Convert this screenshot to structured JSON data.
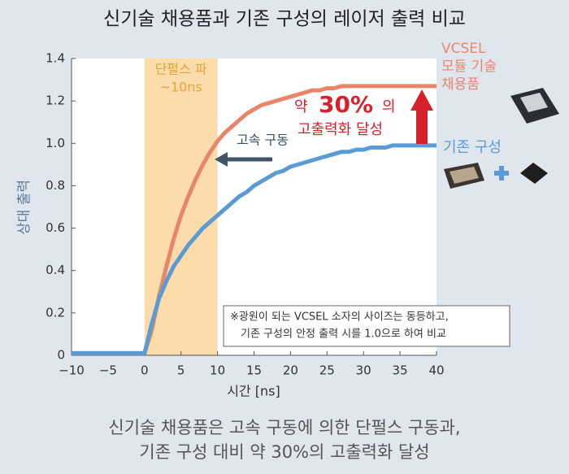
{
  "chart_data": {
    "type": "line",
    "title": "신기술 채용품과 기존 구성의 레이저 출력 비교",
    "x_label": "시간 [ns]",
    "y_label": "상대 출력",
    "x": [
      -10,
      -9,
      -8,
      -7,
      -6,
      -5,
      -4,
      -3,
      -2,
      -1,
      0,
      1,
      2,
      3,
      4,
      5,
      6,
      7,
      8,
      9,
      10,
      11,
      12,
      13,
      14,
      15,
      16,
      17,
      18,
      19,
      20,
      21,
      22,
      23,
      24,
      25,
      26,
      27,
      28,
      29,
      30,
      31,
      32,
      33,
      34,
      35,
      36,
      37,
      38,
      39,
      40
    ],
    "series": [
      {
        "name": [
          "VCSEL",
          "모듈 기술",
          "채용품"
        ],
        "color": "#e8866a",
        "values": [
          0.01,
          0.01,
          0.01,
          0.01,
          0.01,
          0.01,
          0.01,
          0.01,
          0.01,
          0.01,
          0.01,
          0.12,
          0.28,
          0.42,
          0.55,
          0.66,
          0.75,
          0.83,
          0.9,
          0.96,
          1.01,
          1.05,
          1.08,
          1.11,
          1.14,
          1.16,
          1.18,
          1.19,
          1.2,
          1.21,
          1.22,
          1.23,
          1.24,
          1.25,
          1.25,
          1.26,
          1.26,
          1.27,
          1.27,
          1.27,
          1.27,
          1.27,
          1.27,
          1.27,
          1.27,
          1.27,
          1.27,
          1.27,
          1.27,
          1.27,
          1.27
        ]
      },
      {
        "name": [
          "기존 구성"
        ],
        "color": "#5b9bd5",
        "values": [
          0.01,
          0.01,
          0.01,
          0.01,
          0.01,
          0.01,
          0.01,
          0.01,
          0.01,
          0.01,
          0.01,
          0.15,
          0.27,
          0.35,
          0.42,
          0.47,
          0.52,
          0.56,
          0.6,
          0.63,
          0.66,
          0.69,
          0.72,
          0.75,
          0.77,
          0.8,
          0.82,
          0.84,
          0.86,
          0.87,
          0.89,
          0.9,
          0.91,
          0.92,
          0.93,
          0.94,
          0.95,
          0.96,
          0.96,
          0.97,
          0.97,
          0.98,
          0.98,
          0.98,
          0.99,
          0.99,
          0.99,
          0.99,
          0.99,
          0.99,
          0.99
        ]
      }
    ],
    "xlim": [
      -10,
      40
    ],
    "xticks": [
      {
        "value": -10,
        "label": "−10"
      },
      {
        "value": -5,
        "label": "−5"
      },
      0,
      5,
      10,
      15,
      20,
      25,
      30,
      35,
      40
    ],
    "ylim": [
      0,
      1.4
    ],
    "yticks": [
      0,
      0.2,
      0.4,
      0.6,
      0.8,
      {
        "value": 1,
        "label": "1.0"
      },
      1.2,
      1.4
    ],
    "grid": false,
    "band": {
      "from": 0,
      "to": 10,
      "label": [
        "단펄스 파",
        "~10ns"
      ],
      "color": "#fbdcaa"
    },
    "annotations": {
      "speed": "고속 구동",
      "gain": [
        "약",
        "30%",
        "의",
        "고출력화 달성"
      ],
      "note": [
        "※광원이 되는 VCSEL 소자의 사이즈는 동등하고,",
        "기존 구성의 안정 출력 시를 1.0으로 하여 비교"
      ]
    },
    "caption": [
      "신기술 채용품은 고속 구동에 의한 단펄스 구동과,",
      "기존 구성 대비 약 30%의 고출력화 달성"
    ]
  }
}
